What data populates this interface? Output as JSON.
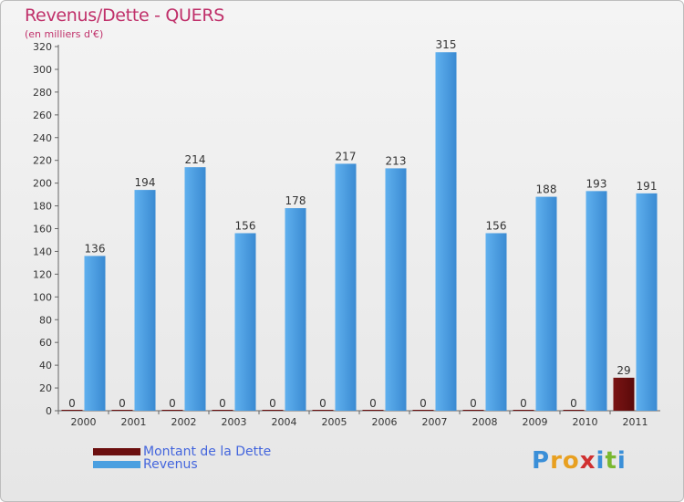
{
  "title": "Revenus/Dette - QUERS",
  "subtitle": "(en milliers d'€)",
  "logo_text": "Proxiti",
  "colors": {
    "debt": "#6b0e0e",
    "revenue": "#4a9fe0",
    "title": "#c0306a",
    "legend_text": "#4466dd"
  },
  "chart_data": {
    "type": "bar",
    "categories": [
      "2000",
      "2001",
      "2002",
      "2003",
      "2004",
      "2005",
      "2006",
      "2007",
      "2008",
      "2009",
      "2010",
      "2011"
    ],
    "series": [
      {
        "name": "Montant de la Dette",
        "values": [
          0,
          0,
          0,
          0,
          0,
          0,
          0,
          0,
          0,
          0,
          0,
          29
        ]
      },
      {
        "name": "Revenus",
        "values": [
          136,
          194,
          214,
          156,
          178,
          217,
          213,
          315,
          156,
          188,
          193,
          191
        ]
      }
    ],
    "ylim": [
      0,
      320
    ],
    "yticks": [
      0,
      20,
      40,
      60,
      80,
      100,
      120,
      140,
      160,
      180,
      200,
      220,
      240,
      260,
      280,
      300,
      320
    ],
    "grid": false,
    "legend": "bottom-left"
  }
}
